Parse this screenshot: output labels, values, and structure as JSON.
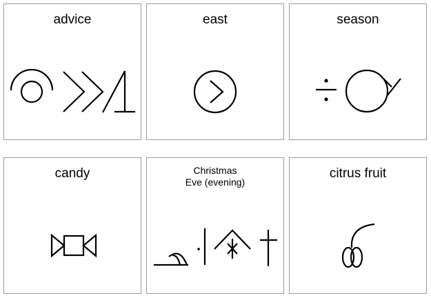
{
  "cards": [
    {
      "label": "advice"
    },
    {
      "label": "east"
    },
    {
      "label": "season"
    },
    {
      "label": "candy"
    },
    {
      "label_line1": "Christmas",
      "label_line2": "Eve (evening)"
    },
    {
      "label": "citrus fruit"
    }
  ]
}
